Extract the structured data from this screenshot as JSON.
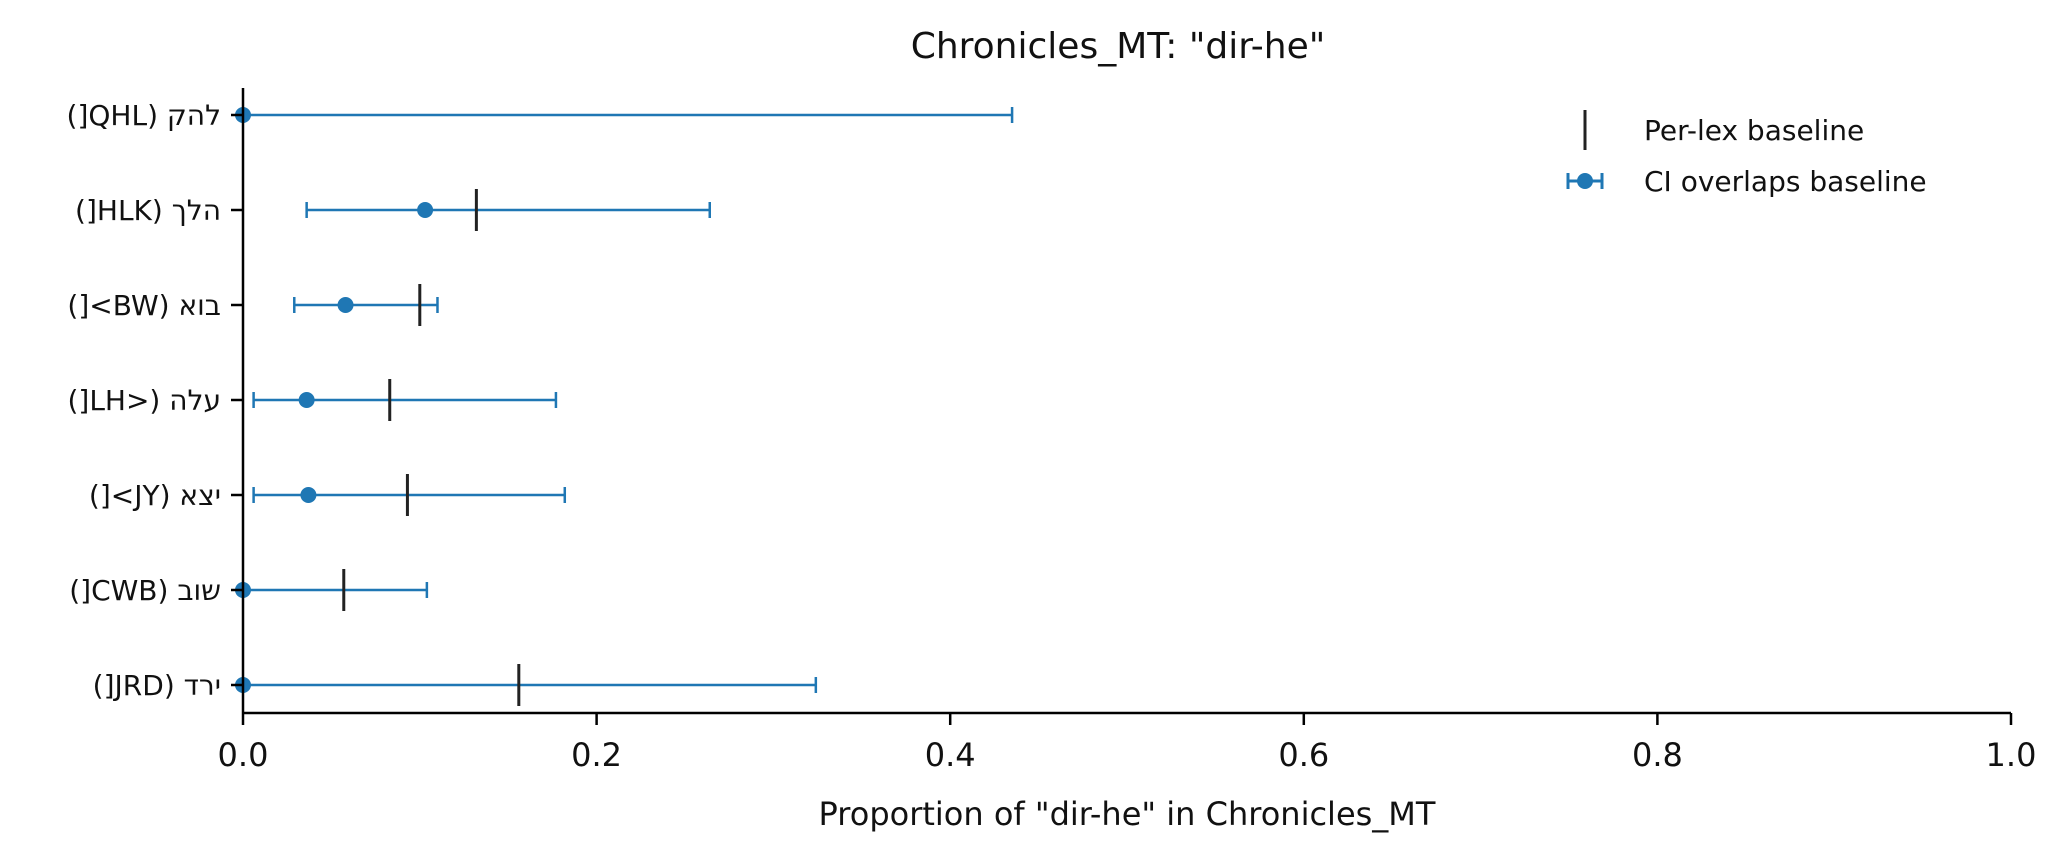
{
  "chart_data": {
    "type": "errorbar",
    "title": "Chronicles_MT: \"dir-he\"",
    "xlabel": "Proportion of \"dir-he\" in Chronicles_MT",
    "ylabel": "",
    "xlim": [
      0.0,
      1.0
    ],
    "xticks": [
      "0.0",
      "0.2",
      "0.4",
      "0.6",
      "0.8",
      "1.0"
    ],
    "categories": [
      "להק (QHL[)",
      "הלך (HLK[)",
      "בוא (BW>[)",
      "עלה (<LH[)",
      "יצא (JY>[)",
      "שוב (CWB[)",
      "ירד (JRD[)"
    ],
    "series": [
      {
        "name": "CI overlaps baseline",
        "points": [
          {
            "value": 0.0,
            "ci": [
              0.0,
              0.435
            ]
          },
          {
            "value": 0.103,
            "ci": [
              0.036,
              0.264
            ]
          },
          {
            "value": 0.058,
            "ci": [
              0.029,
              0.11
            ]
          },
          {
            "value": 0.036,
            "ci": [
              0.006,
              0.177
            ]
          },
          {
            "value": 0.037,
            "ci": [
              0.006,
              0.182
            ]
          },
          {
            "value": 0.0,
            "ci": [
              0.0,
              0.104
            ]
          },
          {
            "value": 0.0,
            "ci": [
              0.0,
              0.324
            ]
          }
        ]
      },
      {
        "name": "Per-lex baseline",
        "values": [
          null,
          0.132,
          0.1,
          0.083,
          0.093,
          0.057,
          0.156
        ]
      }
    ],
    "legend": {
      "position": "top-right",
      "items": [
        "Per-lex baseline",
        "CI overlaps baseline"
      ]
    },
    "grid": false,
    "colors": {
      "ci": "#1f77b4",
      "baseline": "#222222",
      "axis": "#000000"
    }
  }
}
